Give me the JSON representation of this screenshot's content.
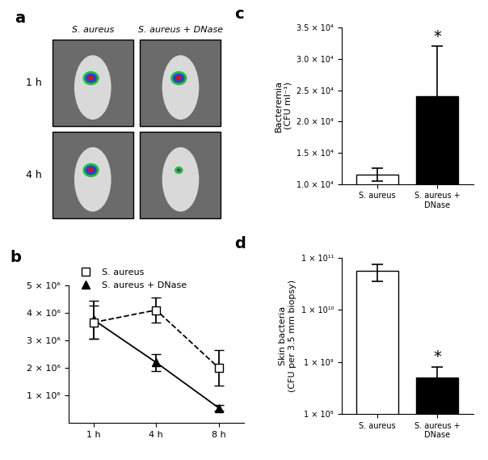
{
  "chart_data": [
    {
      "type": "image",
      "panel": "a",
      "columns": [
        "S. aureus",
        "S. aureus + DNase"
      ],
      "rows": [
        "1 h",
        "4 h"
      ]
    },
    {
      "type": "line",
      "panel": "b",
      "categories": [
        "1 h",
        "4 h",
        "8 h"
      ],
      "ylim": [
        0,
        5000000
      ],
      "yticks": [
        {
          "value": 1000000,
          "label": "1 × 10⁶"
        },
        {
          "value": 2000000,
          "label": "2 × 10⁶"
        },
        {
          "value": 3000000,
          "label": "3 × 10⁶"
        },
        {
          "value": 4000000,
          "label": "4 × 10⁶"
        },
        {
          "value": 5000000,
          "label": "5 × 10⁶"
        }
      ],
      "legend": "upper left",
      "series": [
        {
          "name": "S. aureus",
          "color": "black",
          "marker": "square_open",
          "line_style": "dashed",
          "values": [
            3650000,
            4100000,
            2000000
          ],
          "errors": [
            600000,
            450000,
            650000
          ]
        },
        {
          "name": "S. aureus + DNase",
          "color": "black",
          "marker": "triangle",
          "line_style": "solid",
          "values": [
            3750000,
            2200000,
            550000
          ],
          "errors": [
            700000,
            300000,
            100000
          ]
        }
      ]
    },
    {
      "type": "bar",
      "panel": "c",
      "y_label": "Bacteremia\n(CFU ml⁻¹)",
      "categories": [
        "S. aureus",
        "S. aureus + DNase"
      ],
      "values": [
        11500,
        24000
      ],
      "errors": [
        1000,
        8000
      ],
      "colors": [
        "white",
        "black"
      ],
      "annotations": [
        {
          "category": "S. aureus + DNase",
          "text": "*"
        }
      ],
      "ylim": [
        10000,
        35000
      ],
      "yticks": [
        {
          "value": 10000,
          "label": "1.0 × 10⁴"
        },
        {
          "value": 15000,
          "label": "1.5 × 10⁴"
        },
        {
          "value": 20000,
          "label": "2.0 × 10⁴"
        },
        {
          "value": 25000,
          "label": "2.5 × 10⁴"
        },
        {
          "value": 30000,
          "label": "3.0 × 10⁴"
        },
        {
          "value": 35000,
          "label": "3.5 × 10⁴"
        }
      ]
    },
    {
      "type": "bar",
      "panel": "d",
      "log": "y",
      "y_label": "Skin bacteria\n(CFU per 3.5 mm biopsy)",
      "categories": [
        "S. aureus",
        "S. aureus + DNase"
      ],
      "values": [
        55000000000,
        500000000
      ],
      "errors": [
        20000000000,
        300000000
      ],
      "colors": [
        "white",
        "black"
      ],
      "annotations": [
        {
          "category": "S. aureus + DNase",
          "text": "*"
        }
      ],
      "ylim": [
        100000000,
        100000000000
      ],
      "yticks": [
        {
          "value": 100000000,
          "label": "1 × 10⁸"
        },
        {
          "value": 1000000000,
          "label": "1 × 10⁹"
        },
        {
          "value": 10000000000,
          "label": "1 × 10¹⁰"
        },
        {
          "value": 100000000000,
          "label": "1 × 10¹¹"
        }
      ]
    }
  ]
}
